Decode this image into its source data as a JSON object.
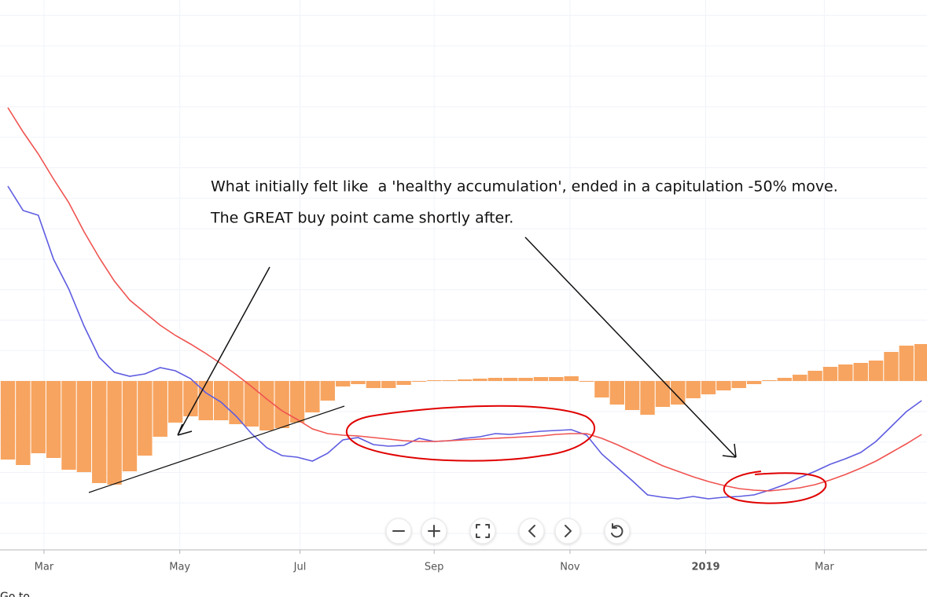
{
  "chart_data": {
    "type": "bar",
    "categories": [
      null,
      null,
      null,
      null,
      null,
      null,
      null,
      null,
      null,
      null,
      null,
      null,
      null,
      null,
      null,
      null,
      null,
      null,
      null,
      null,
      null,
      null,
      null,
      null,
      null,
      null,
      null,
      null,
      null,
      null,
      null,
      null,
      null,
      null,
      null,
      null,
      null,
      null,
      null,
      null,
      null,
      null,
      null,
      null,
      null,
      null,
      null,
      null,
      null,
      null,
      null,
      null,
      null,
      null,
      null,
      null,
      null,
      null,
      null,
      null,
      null
    ],
    "series": [
      {
        "type": "bar",
        "color": "#f7a460",
        "values": [
          -10.0,
          -10.7,
          -9.2,
          -9.8,
          -11.3,
          -11.6,
          -13.0,
          -13.2,
          -11.5,
          -9.5,
          -7.1,
          -5.3,
          -4.5,
          -5.0,
          -5.0,
          -5.5,
          -5.8,
          -6.3,
          -6.0,
          -5.3,
          -4.0,
          -2.5,
          -0.7,
          -0.4,
          -0.9,
          -0.9,
          -0.5,
          -0.1,
          0.1,
          0.1,
          0.2,
          0.3,
          0.4,
          0.4,
          0.4,
          0.5,
          0.5,
          0.6,
          -0.1,
          -2.1,
          -3.0,
          -3.7,
          -4.3,
          -3.3,
          -3.0,
          -2.2,
          -1.7,
          -1.2,
          -0.9,
          -0.4,
          0.1,
          0.4,
          0.8,
          1.3,
          1.8,
          2.1,
          2.3,
          2.6,
          3.7,
          4.5,
          4.7
        ]
      },
      {
        "type": "line",
        "color": "#5e5ce0",
        "values": [
          24.8,
          21.7,
          21.1,
          15.5,
          11.7,
          7.0,
          3.0,
          1.1,
          0.6,
          0.9,
          1.7,
          1.3,
          0.3,
          -1.5,
          -2.7,
          -4.5,
          -6.7,
          -8.5,
          -9.5,
          -9.7,
          -10.2,
          -9.2,
          -7.5,
          -7.2,
          -8.1,
          -8.3,
          -8.2,
          -7.3,
          -7.7,
          -7.6,
          -7.3,
          -7.1,
          -6.7,
          -6.8,
          -6.6,
          -6.4,
          -6.3,
          -6.2,
          -6.9,
          -9.3,
          -11.0,
          -12.7,
          -14.5,
          -14.8,
          -15.0,
          -14.7,
          -15.0,
          -14.8,
          -14.7,
          -14.5,
          -13.9,
          -13.2,
          -12.3,
          -11.5,
          -10.6,
          -9.9,
          -9.1,
          -7.7,
          -5.8,
          -3.9,
          -2.5
        ]
      },
      {
        "type": "line",
        "color": "#ef5350",
        "values": [
          34.8,
          31.7,
          28.9,
          25.7,
          22.7,
          19.0,
          15.7,
          12.7,
          10.3,
          8.7,
          7.1,
          5.8,
          4.7,
          3.5,
          2.2,
          0.8,
          -0.7,
          -2.3,
          -3.8,
          -4.9,
          -6.1,
          -6.7,
          -6.9,
          -7.0,
          -7.2,
          -7.4,
          -7.6,
          -7.7,
          -7.7,
          -7.6,
          -7.5,
          -7.4,
          -7.3,
          -7.2,
          -7.1,
          -7.0,
          -6.8,
          -6.7,
          -6.7,
          -7.3,
          -8.1,
          -9.0,
          -9.9,
          -10.8,
          -11.5,
          -12.2,
          -12.8,
          -13.3,
          -13.7,
          -13.9,
          -14.0,
          -13.8,
          -13.6,
          -13.2,
          -12.6,
          -11.9,
          -11.1,
          -10.2,
          -9.1,
          -8.0,
          -6.8
        ]
      }
    ],
    "ylim": [
      -21.5,
      48.5
    ],
    "xticks": [
      {
        "value": 2.37,
        "label": "Mar"
      },
      {
        "value": 11.29,
        "label": "May"
      },
      {
        "value": 19.18,
        "label": "Jul"
      },
      {
        "value": 27.99,
        "label": "Sep"
      },
      {
        "value": 36.91,
        "label": "Nov"
      },
      {
        "value": 45.82,
        "label": "2019"
      },
      {
        "value": 53.61,
        "label": "Mar"
      }
    ],
    "grid": true,
    "annotations": [
      "What initially felt like  a 'healthy accumulation', ended in a capitulation -50% move.",
      "The GREAT buy point came shortly after."
    ]
  },
  "footer": "Go to"
}
